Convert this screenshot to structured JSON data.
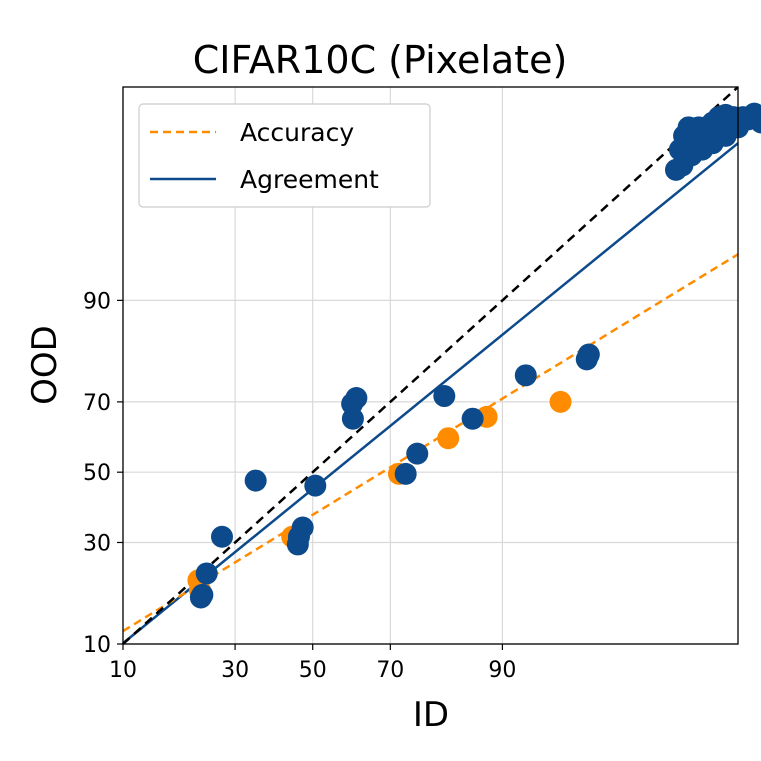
{
  "chart_data": {
    "type": "scatter",
    "title": "CIFAR10C (Pixelate)",
    "xlabel": "ID",
    "ylabel": "OOD",
    "scale": "probit",
    "xlim": [
      10,
      99.8
    ],
    "ylim": [
      10,
      99.8
    ],
    "x_ticks": [
      10,
      30,
      50,
      70,
      90
    ],
    "y_ticks": [
      10,
      30,
      50,
      70,
      90
    ],
    "grid": true,
    "legend": {
      "placement": "top-left",
      "entries": [
        {
          "label": "Accuracy",
          "style": "dashed",
          "color": "#ff8c00"
        },
        {
          "label": "Agreement",
          "style": "solid",
          "color": "#0c4a8b"
        }
      ]
    },
    "diagonal": {
      "style": "dashed",
      "color": "#000000"
    },
    "fit_lines": {
      "accuracy": {
        "color": "#ff8c00",
        "points": [
          [
            10,
            11.8
          ],
          [
            99.8,
            94.8
          ]
        ]
      },
      "agreement": {
        "color": "#0c4a8b",
        "points": [
          [
            10,
            10.1
          ],
          [
            99.8,
            99.3
          ]
        ]
      }
    },
    "series": [
      {
        "name": "Accuracy",
        "color": "#ff8c00",
        "points": [
          [
            22,
            21
          ],
          [
            22.3,
            19
          ],
          [
            44.5,
            31.5
          ],
          [
            72,
            49.5
          ],
          [
            82,
            60
          ],
          [
            88,
            66
          ],
          [
            95.3,
            70
          ]
        ]
      },
      {
        "name": "Agreement",
        "color": "#0c4a8b",
        "points": [
          [
            22.5,
            17.5
          ],
          [
            22.8,
            18
          ],
          [
            23.7,
            22.5
          ],
          [
            27,
            31.5
          ],
          [
            35,
            47.5
          ],
          [
            46,
            29.5
          ],
          [
            46.3,
            31.5
          ],
          [
            47.3,
            34
          ],
          [
            50.7,
            46
          ],
          [
            60.5,
            69.5
          ],
          [
            61.6,
            71
          ],
          [
            60.7,
            65.5
          ],
          [
            73.5,
            49.5
          ],
          [
            76,
            55.5
          ],
          [
            81.3,
            71.5
          ],
          [
            86,
            65.5
          ],
          [
            92.5,
            76.5
          ],
          [
            96.8,
            80
          ],
          [
            96.9,
            81
          ],
          [
            99.3,
            98.8
          ],
          [
            99.35,
            99.2
          ],
          [
            99.4,
            99.4
          ],
          [
            99.45,
            99.5
          ],
          [
            99.5,
            99.3
          ],
          [
            99.55,
            99.5
          ],
          [
            99.6,
            99.35
          ],
          [
            99.63,
            99.45
          ],
          [
            99.66,
            99.55
          ],
          [
            99.68,
            99.5
          ],
          [
            99.7,
            99.6
          ],
          [
            99.72,
            99.5
          ],
          [
            99.74,
            99.62
          ],
          [
            99.76,
            99.55
          ],
          [
            99.78,
            99.6
          ],
          [
            99.8,
            99.5
          ],
          [
            99.82,
            99.6
          ],
          [
            99.84,
            99.58
          ],
          [
            99.86,
            99.63
          ],
          [
            99.88,
            99.55
          ],
          [
            99.38,
            98.9
          ],
          [
            99.48,
            99.1
          ],
          [
            99.58,
            99.2
          ],
          [
            99.66,
            99.3
          ],
          [
            99.74,
            99.4
          ]
        ]
      }
    ]
  }
}
